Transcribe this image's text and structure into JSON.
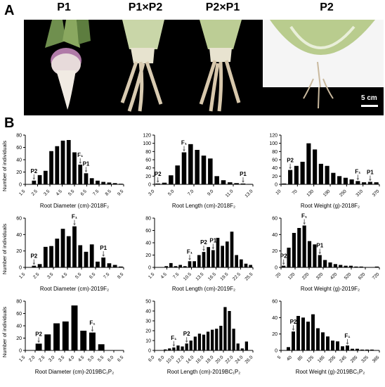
{
  "panel_a": {
    "letter": "A",
    "labels": [
      "P1",
      "P1×P2",
      "P2×P1",
      "P2"
    ],
    "scale_label": "5 cm"
  },
  "panel_b": {
    "letter": "B"
  },
  "y_axis_label": "Number of individuals",
  "chart_data": [
    {
      "type": "bar",
      "xlabel": "Root Diameter (cm)-2018F₂",
      "ticks": [
        "1.5",
        "2.5",
        "3.5",
        "4.5",
        "5.5",
        "6.5",
        "7.5",
        "8.5",
        "9.5"
      ],
      "values": [
        0,
        6,
        15,
        22,
        54,
        62,
        71,
        72,
        52,
        32,
        18,
        10,
        6,
        4,
        3,
        2,
        1
      ],
      "ylim": [
        0,
        80
      ],
      "yticks": [
        0,
        20,
        40,
        60,
        80
      ],
      "markers": [
        {
          "label": "P2",
          "bar": 1
        },
        {
          "label": "F₁",
          "bar": 9
        },
        {
          "label": "P1",
          "bar": 10
        }
      ]
    },
    {
      "type": "bar",
      "xlabel": "Root Length (cm)-2018F₂",
      "ticks": [
        "3.0",
        "5.0",
        "7.0",
        "9.0",
        "11.0",
        "13.0"
      ],
      "values": [
        2,
        4,
        22,
        46,
        78,
        98,
        84,
        70,
        63,
        20,
        10,
        5,
        3,
        2,
        1
      ],
      "ylim": [
        0,
        120
      ],
      "yticks": [
        0,
        20,
        40,
        60,
        80,
        100,
        120
      ],
      "markers": [
        {
          "label": "P2",
          "bar": 0
        },
        {
          "label": "F₁",
          "bar": 4
        },
        {
          "label": "P1",
          "bar": 13
        }
      ]
    },
    {
      "type": "bar",
      "xlabel": "Root Weight (g)-2018F₂",
      "ticks": [
        "10",
        "70",
        "130",
        "190",
        "250",
        "310",
        "370"
      ],
      "values": [
        2,
        35,
        45,
        55,
        100,
        85,
        50,
        45,
        28,
        20,
        16,
        12,
        8,
        5,
        6,
        5
      ],
      "ylim": [
        0,
        120
      ],
      "yticks": [
        0,
        20,
        40,
        60,
        80,
        100,
        120
      ],
      "markers": [
        {
          "label": "P2",
          "bar": 1
        },
        {
          "label": "F₁",
          "bar": 12
        },
        {
          "label": "P1",
          "bar": 14
        }
      ]
    },
    {
      "type": "bar",
      "xlabel": "Root Diameter (cm)-2019F₂",
      "ticks": [
        "1.5",
        "2.5",
        "3.5",
        "4.5",
        "5.5",
        "6.5",
        "7.5",
        "8.5"
      ],
      "values": [
        0,
        2,
        4,
        25,
        26,
        35,
        47,
        38,
        50,
        27,
        19,
        28,
        7,
        12,
        5,
        3,
        1
      ],
      "ylim": [
        0,
        60
      ],
      "yticks": [
        0,
        20,
        40,
        60
      ],
      "markers": [
        {
          "label": "P2",
          "bar": 1
        },
        {
          "label": "F₁",
          "bar": 8
        },
        {
          "label": "P1",
          "bar": 13
        }
      ]
    },
    {
      "type": "bar",
      "xlabel": "Root Length (cm)-2019F₂",
      "ticks": [
        "1.5",
        "4.5",
        "7.5",
        "10.5",
        "13.5",
        "16.5",
        "19.5",
        "22.5",
        "25.5"
      ],
      "values": [
        0,
        0,
        2,
        7,
        2,
        4,
        2,
        10,
        10,
        20,
        25,
        33,
        28,
        48,
        35,
        42,
        58,
        20,
        13,
        6,
        4
      ],
      "ylim": [
        0,
        80
      ],
      "yticks": [
        0,
        20,
        40,
        60,
        80
      ],
      "markers": [
        {
          "label": "F₁",
          "bar": 7
        },
        {
          "label": "P2",
          "bar": 10
        },
        {
          "label": "P1",
          "bar": 12
        }
      ]
    },
    {
      "type": "bar",
      "xlabel": "Root Weight (g)-2019F₂",
      "ticks": [
        "20",
        "120",
        "220",
        "320",
        "420",
        "520",
        "620",
        "720"
      ],
      "values": [
        2,
        24,
        42,
        48,
        51,
        32,
        28,
        15,
        9,
        6,
        4,
        3,
        2,
        2,
        1,
        1,
        0,
        0,
        1
      ],
      "ylim": [
        0,
        60
      ],
      "yticks": [
        0,
        20,
        40,
        60
      ],
      "markers": [
        {
          "label": "P2",
          "bar": 0
        },
        {
          "label": "F₁",
          "bar": 4
        },
        {
          "label": "P1",
          "bar": 7
        }
      ]
    },
    {
      "type": "bar",
      "xlabel": "Root Diameter (cm)-2019BC₁P₂",
      "ticks": [
        "1.5",
        "2.0",
        "2.5",
        "3.0",
        "3.5",
        "4.0",
        "4.5",
        "5.0",
        "5.5",
        "6.0",
        "6.5"
      ],
      "values": [
        0,
        11,
        26,
        44,
        47,
        73,
        32,
        29,
        10,
        0,
        0
      ],
      "ylim": [
        0,
        80
      ],
      "yticks": [
        0,
        20,
        40,
        60,
        80
      ],
      "markers": [
        {
          "label": "P2",
          "bar": 1
        },
        {
          "label": "F₁",
          "bar": 7
        }
      ]
    },
    {
      "type": "bar",
      "xlabel": "Root Length (cm)-2019BC₁P₂",
      "ticks": [
        "6.0",
        "8.0",
        "10.0",
        "12.0",
        "14.0",
        "16.0",
        "18.0",
        "20.0",
        "22.0",
        "24.0",
        "26.0"
      ],
      "values": [
        0,
        0,
        1,
        2,
        3,
        5,
        4,
        7,
        10,
        14,
        17,
        16,
        19,
        21,
        22,
        25,
        44,
        40,
        22,
        7,
        2,
        9,
        0
      ],
      "ylim": [
        0,
        50
      ],
      "yticks": [
        0,
        10,
        20,
        30,
        40,
        50
      ],
      "markers": [
        {
          "label": "F₁",
          "bar": 4
        },
        {
          "label": "P2",
          "bar": 7
        }
      ]
    },
    {
      "type": "bar",
      "xlabel": "Root Weight (g)-2019BC₁P₂",
      "ticks": [
        "5",
        "40",
        "85",
        "125",
        "165",
        "205",
        "245",
        "285",
        "325",
        "365"
      ],
      "values": [
        0,
        4,
        23,
        42,
        40,
        35,
        44,
        27,
        22,
        17,
        12,
        11,
        5,
        6,
        2,
        2,
        1,
        1,
        1,
        0
      ],
      "ylim": [
        0,
        60
      ],
      "yticks": [
        0,
        20,
        40,
        60
      ],
      "markers": [
        {
          "label": "P2",
          "bar": 2
        },
        {
          "label": "F₁",
          "bar": 13
        }
      ]
    }
  ]
}
